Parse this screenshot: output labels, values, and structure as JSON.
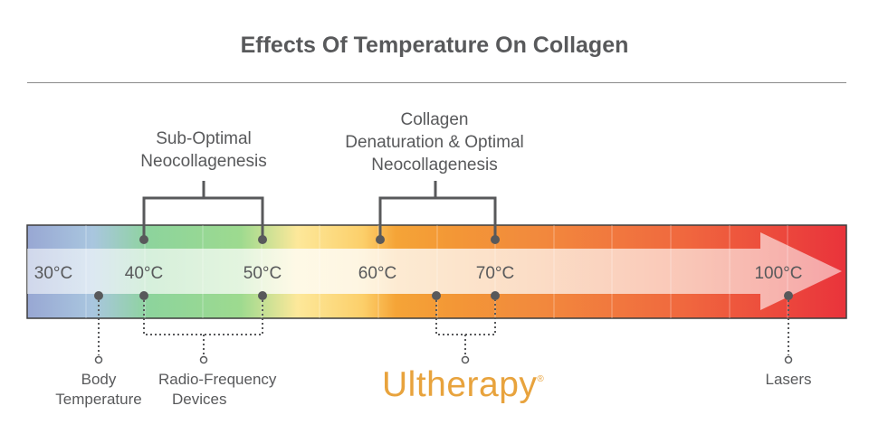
{
  "title": "Effects Of Temperature On Collagen",
  "top_labels": {
    "sub_optimal": {
      "line1": "Sub-Optimal",
      "line2": "Neocollagenesis"
    },
    "optimal": {
      "line1": "Collagen",
      "line2": "Denaturation & Optimal",
      "line3": "Neocollagenesis"
    }
  },
  "temperature_labels": [
    "30°C",
    "40°C",
    "50°C",
    "60°C",
    "70°C",
    "100°C"
  ],
  "bottom_labels": {
    "body": {
      "line1": "Body",
      "line2": "Temperature"
    },
    "rf": {
      "line1": "Radio-Frequency",
      "line2": "Devices"
    },
    "lasers": "Lasers"
  },
  "brand": {
    "name": "Ultherapy",
    "mark": "®",
    "color": "#e8a33d"
  },
  "colors": {
    "text": "#58595b",
    "bar_cool": "#9fb1d6",
    "bar_green": "#8fd39a",
    "bar_yellow": "#fde08a",
    "bar_orange": "#f08a2c",
    "bar_red": "#e8323c",
    "connector": "#58595b"
  }
}
